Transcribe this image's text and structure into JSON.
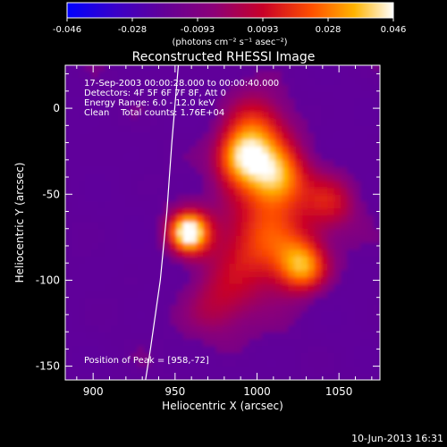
{
  "chart_data": {
    "type": "heatmap",
    "title": "Reconstructed RHESSI Image",
    "xlabel": "Heliocentric X (arcsec)",
    "ylabel": "Heliocentric Y (arcsec)",
    "xlim": [
      883,
      1075
    ],
    "ylim": [
      -158,
      25
    ],
    "xticks": [
      900,
      950,
      1000,
      1050
    ],
    "yticks": [
      -150,
      -100,
      -50,
      0
    ],
    "colorbar": {
      "range": [
        -0.046,
        0.046
      ],
      "ticks": [
        "-0.046",
        "-0.028",
        "-0.0093",
        "0.0093",
        "0.028",
        "0.046"
      ],
      "label": "(photons cm⁻² s⁻¹ asec⁻²)"
    },
    "annotations": [
      "17-Sep-2003 00:00:28.000 to 00:00:40.000",
      "Detectors: 4F 5F 6F 7F 8F, Att 0",
      "Energy Range: 6.0 - 12.0 keV",
      "Clean    Total counts: 1.76E+04"
    ],
    "peak_label": "Position of Peak = [958,-72]",
    "peak": [
      958,
      -72
    ],
    "sources": [
      {
        "x": 958,
        "y": -72,
        "amp": 1.0,
        "sigma": 9
      },
      {
        "x": 990,
        "y": -28,
        "amp": 0.78,
        "sigma": 12
      },
      {
        "x": 1012,
        "y": -40,
        "amp": 0.72,
        "sigma": 13
      },
      {
        "x": 1028,
        "y": -92,
        "amp": 0.68,
        "sigma": 11
      },
      {
        "x": 1005,
        "y": -75,
        "amp": 0.6,
        "sigma": 20
      },
      {
        "x": 1000,
        "y": -10,
        "amp": 0.45,
        "sigma": 14
      },
      {
        "x": 975,
        "y": -115,
        "amp": 0.35,
        "sigma": 16
      },
      {
        "x": 1045,
        "y": -55,
        "amp": 0.35,
        "sigma": 12
      }
    ],
    "limb": [
      [
        952,
        25
      ],
      [
        948,
        -20
      ],
      [
        945,
        -60
      ],
      [
        941,
        -100
      ],
      [
        935,
        -140
      ],
      [
        932,
        -158
      ]
    ]
  },
  "timestamp": "10-Jun-2013 16:31",
  "colors": {
    "background": "#000000",
    "text": "#ffffff",
    "limb": "#ffffff"
  }
}
